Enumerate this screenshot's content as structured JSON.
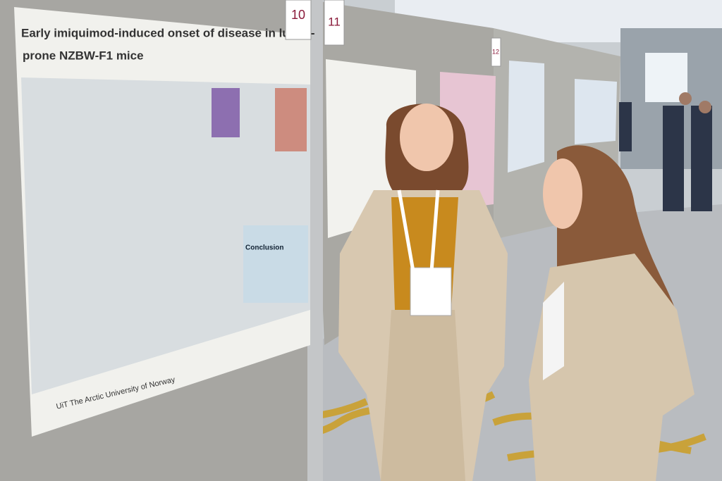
{
  "scene": {
    "board_numbers": [
      "10",
      "11",
      "12"
    ],
    "poster": {
      "title_lines": [
        "Early imiquimod-induced onset of disease in lupus-",
        "prone NZBW-F1 mice"
      ],
      "section": "Conclusion",
      "footer": "UiT The Arctic University of Norway"
    }
  }
}
